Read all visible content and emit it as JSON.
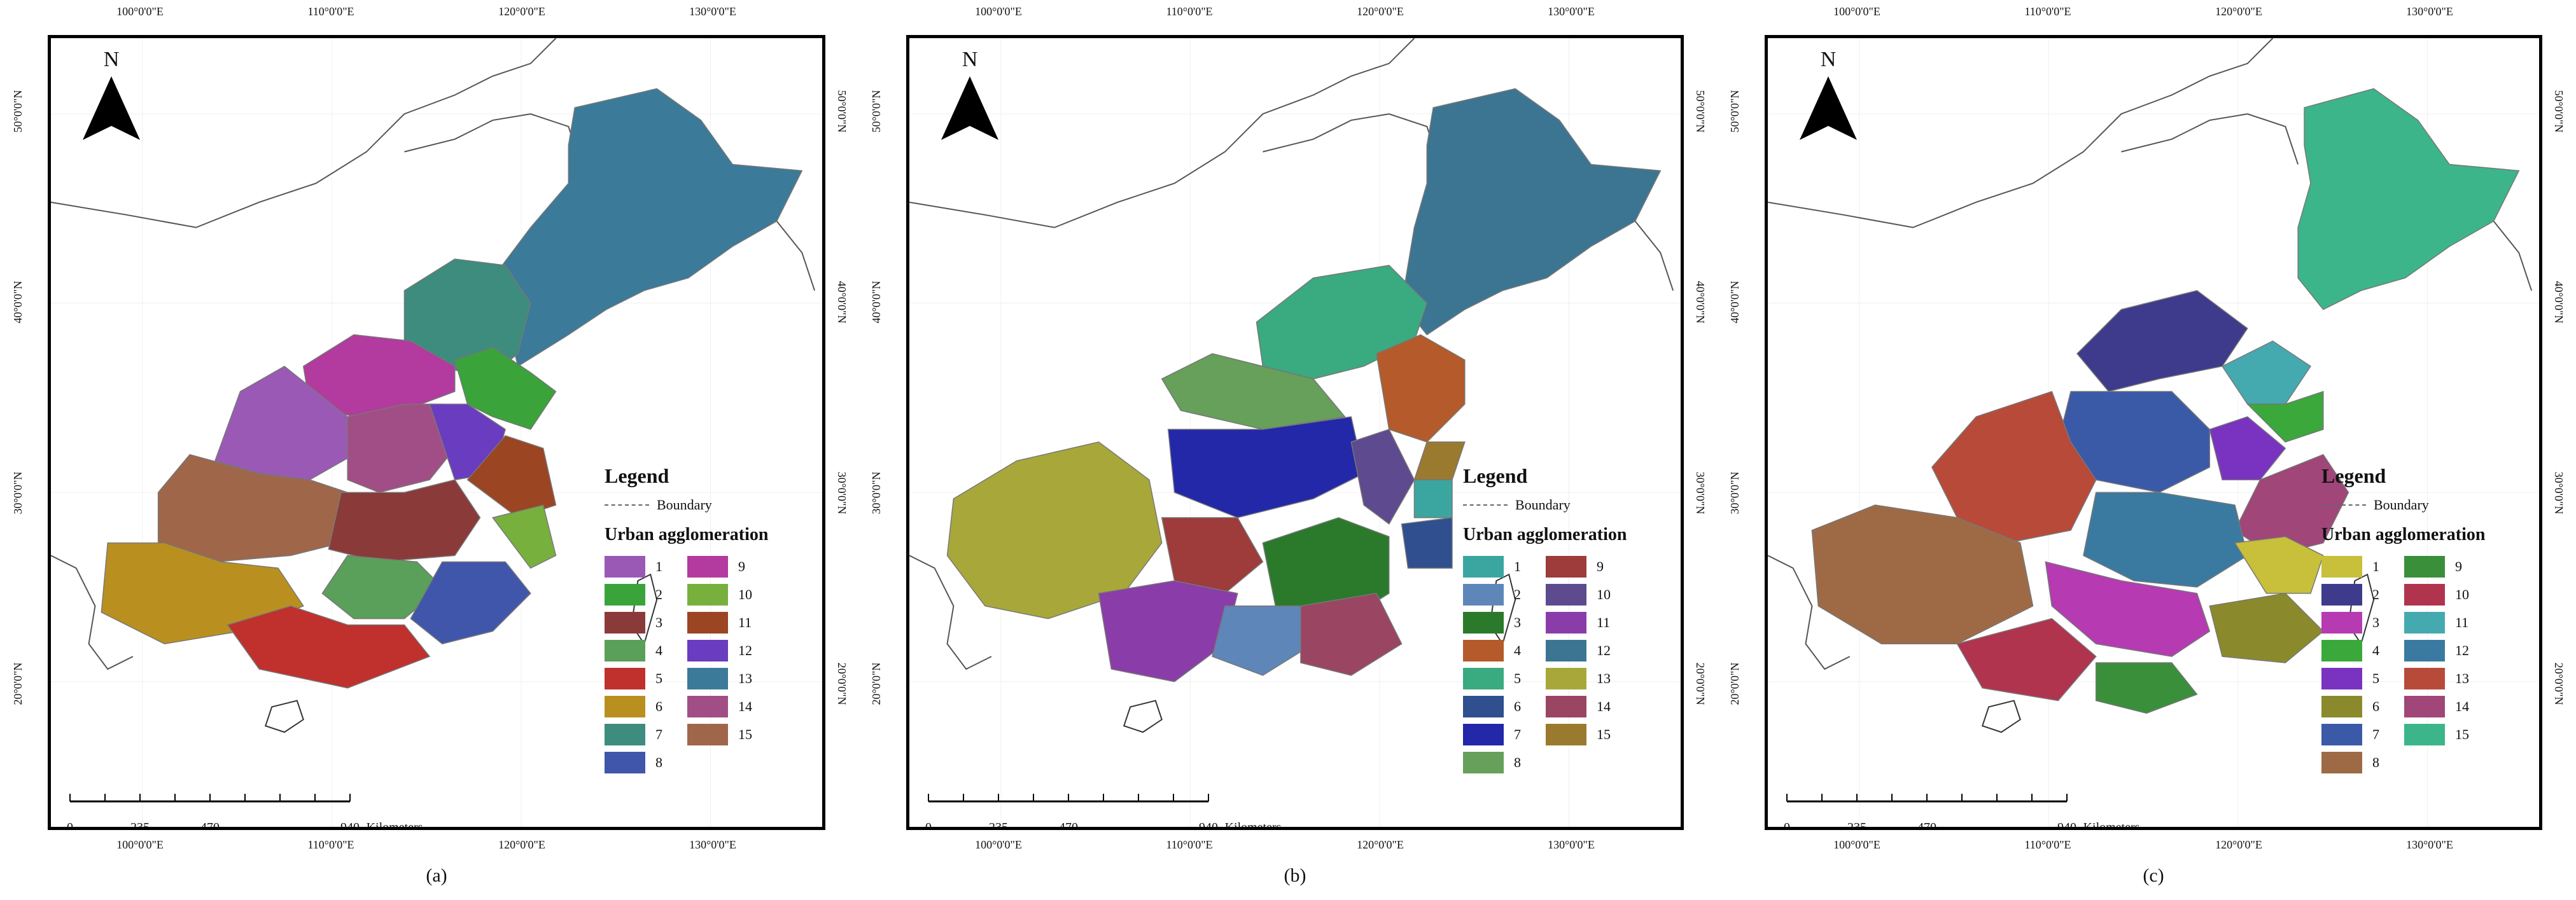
{
  "axes": {
    "lon_labels": [
      "100°0'0\"E",
      "110°0'0\"E",
      "120°0'0\"E",
      "130°0'0\"E"
    ],
    "lat_labels": [
      "50°0'0\"N",
      "40°0'0\"N",
      "30°0'0\"N",
      "20°0'0\"N"
    ]
  },
  "north_label": "N",
  "scale": {
    "ticks": [
      "0",
      "235",
      "470",
      "940"
    ],
    "unit": "Kilometers"
  },
  "legend": {
    "title": "Legend",
    "boundary_label": "Boundary",
    "subtitle": "Urban agglomeration"
  },
  "panels": [
    {
      "caption": "(a)",
      "colors": {
        "1": "#9b59b6",
        "2": "#3aa33a",
        "3": "#8b3a3a",
        "4": "#5aa05a",
        "5": "#c0302d",
        "6": "#b9901f",
        "7": "#3d8c7d",
        "8": "#3f56aa",
        "9": "#b33a9e",
        "10": "#78b03e",
        "11": "#9b4523",
        "12": "#6a3cc0",
        "13": "#3b7a99",
        "14": "#a24e86",
        "15": "#a0664a"
      }
    },
    {
      "caption": "(b)",
      "colors": {
        "1": "#3ba6a0",
        "2": "#5f86b8",
        "3": "#2b7a2b",
        "4": "#b55a2a",
        "5": "#3aaa80",
        "6": "#2f4f8f",
        "7": "#2228a8",
        "8": "#66a05a",
        "9": "#9e3b3b",
        "10": "#5e4a8e",
        "11": "#8a3da8",
        "12": "#3c7592",
        "13": "#a8a83a",
        "14": "#9a4562",
        "15": "#9a7a2f"
      }
    },
    {
      "caption": "(c)",
      "colors": {
        "1": "#c8bf3a",
        "2": "#3e3a8c",
        "3": "#b63ab2",
        "4": "#3aa83a",
        "5": "#7a33c0",
        "6": "#8a8a2c",
        "7": "#3a5aa8",
        "8": "#9e6a45",
        "9": "#3a8f3a",
        "10": "#b0344e",
        "11": "#45aab0",
        "12": "#3a7aa0",
        "13": "#b84a3a",
        "14": "#a04678",
        "15": "#3cb58a"
      }
    }
  ],
  "legend_items": [
    "1",
    "2",
    "3",
    "4",
    "5",
    "6",
    "7",
    "8",
    "9",
    "10",
    "11",
    "12",
    "13",
    "14",
    "15"
  ]
}
